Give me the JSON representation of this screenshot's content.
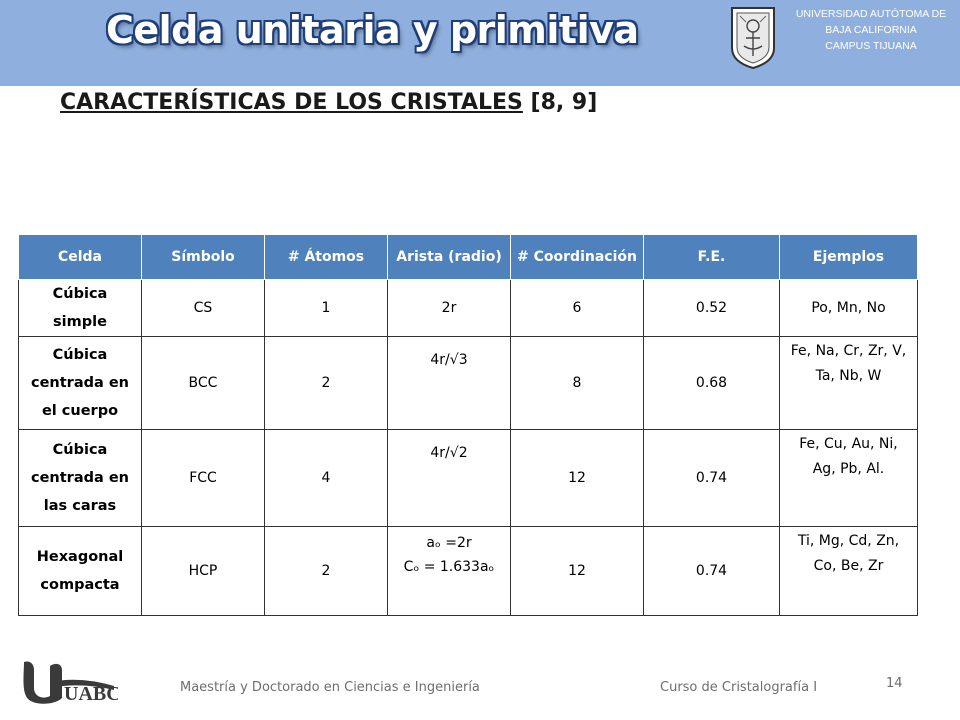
{
  "header": {
    "title": "Celda unitaria y primitiva",
    "university": [
      "UNIVERSIDAD AUTÓTOMA DE",
      "BAJA CALIFORNIA",
      "CAMPUS TIJUANA"
    ]
  },
  "subtitle": {
    "main": "CARACTERÍSTICAS DE LOS CRISTALES",
    "refs": " [8, 9]"
  },
  "table": {
    "headers": [
      "Celda",
      "Símbolo",
      "# Átomos",
      "Arista (radio)",
      "# Coordinación",
      "F.E.",
      "Ejemplos"
    ],
    "rows": [
      {
        "celda": [
          "Cúbica",
          "simple"
        ],
        "simbolo": "CS",
        "atomos": "1",
        "arista": [
          "2r"
        ],
        "coordinacion": "6",
        "fe": "0.52",
        "ejemplos": [
          "Po, Mn, No"
        ]
      },
      {
        "celda": [
          "Cúbica",
          "centrada en",
          "el cuerpo"
        ],
        "simbolo": "BCC",
        "atomos": "2",
        "arista": [
          "4r/√3"
        ],
        "coordinacion": "8",
        "fe": "0.68",
        "ejemplos": [
          "Fe, Na, Cr, Zr, V,",
          "Ta, Nb, W"
        ]
      },
      {
        "celda": [
          "Cúbica",
          "centrada en",
          "las caras"
        ],
        "simbolo": "FCC",
        "atomos": "4",
        "arista": [
          "4r/√2"
        ],
        "coordinacion": "12",
        "fe": "0.74",
        "ejemplos": [
          "Fe, Cu, Au, Ni,",
          "Ag, Pb, Al."
        ]
      },
      {
        "celda": [
          "Hexagonal",
          "compacta"
        ],
        "simbolo": "HCP",
        "atomos": "2",
        "arista": [
          "aₒ =2r",
          "Cₒ = 1.633aₒ"
        ],
        "coordinacion": "12",
        "fe": "0.74",
        "ejemplos": [
          "Ti, Mg, Cd, Zn,",
          "Co, Be, Zr"
        ]
      }
    ]
  },
  "footer": {
    "logo_text": "UABC",
    "left": "Maestría y Doctorado en Ciencias e Ingeniería",
    "right": "Curso de Cristalografía I",
    "page_number": "14"
  },
  "colors": {
    "header_bar": "#8fb0de",
    "title_outline": "#1f3f7a",
    "table_header": "#4f81bd",
    "footer_text": "#6e6e6e"
  }
}
